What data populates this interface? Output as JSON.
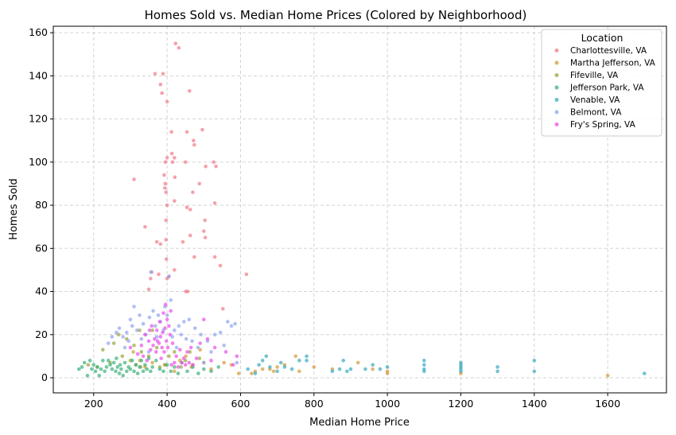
{
  "chart_data": {
    "type": "scatter",
    "title": "Homes Sold vs. Median Home Prices (Colored by Neighborhood)",
    "xlabel": "Median Home Price",
    "ylabel": "Homes Sold",
    "xlim": [
      90,
      1760
    ],
    "ylim": [
      -7,
      163
    ],
    "xticks": [
      200,
      400,
      600,
      800,
      1000,
      1200,
      1400,
      1600
    ],
    "yticks": [
      0,
      20,
      40,
      60,
      80,
      100,
      120,
      140,
      160
    ],
    "grid": true,
    "legend": {
      "title": "Location",
      "placement": "top-right"
    },
    "series": [
      {
        "name": "Charlottesville, VA",
        "color": "#f07a89",
        "points": [
          [
            367,
            141
          ],
          [
            423,
            155
          ],
          [
            432,
            153
          ],
          [
            389,
            141
          ],
          [
            382,
            136
          ],
          [
            386,
            132
          ],
          [
            400,
            128
          ],
          [
            461,
            133
          ],
          [
            310,
            92
          ],
          [
            340,
            70
          ],
          [
            372,
            63
          ],
          [
            382,
            62
          ],
          [
            377,
            48
          ],
          [
            358,
            49
          ],
          [
            355,
            46
          ],
          [
            350,
            41
          ],
          [
            392,
            94
          ],
          [
            395,
            100
          ],
          [
            400,
            102
          ],
          [
            395,
            90
          ],
          [
            394,
            88
          ],
          [
            397,
            86
          ],
          [
            400,
            80
          ],
          [
            397,
            73
          ],
          [
            405,
            47
          ],
          [
            400,
            46
          ],
          [
            420,
            50
          ],
          [
            398,
            55
          ],
          [
            397,
            64
          ],
          [
            420,
            82
          ],
          [
            421,
            93
          ],
          [
            412,
            114
          ],
          [
            413,
            104
          ],
          [
            420,
            102
          ],
          [
            415,
            100
          ],
          [
            450,
            100
          ],
          [
            454,
            114
          ],
          [
            472,
            110
          ],
          [
            474,
            108
          ],
          [
            470,
            86
          ],
          [
            463,
            78
          ],
          [
            454,
            79
          ],
          [
            463,
            66
          ],
          [
            474,
            56
          ],
          [
            443,
            63
          ],
          [
            451,
            40
          ],
          [
            456,
            40
          ],
          [
            496,
            115
          ],
          [
            488,
            90
          ],
          [
            500,
            68
          ],
          [
            503,
            73
          ],
          [
            504,
            65
          ],
          [
            505,
            98
          ],
          [
            527,
            100
          ],
          [
            533,
            98
          ],
          [
            530,
            81
          ],
          [
            530,
            56
          ],
          [
            545,
            52
          ],
          [
            552,
            32
          ],
          [
            616,
            48
          ]
        ]
      },
      {
        "name": "Martha Jefferson, VA",
        "color": "#d39a39",
        "points": [
          [
            308,
            12
          ],
          [
            326,
            8
          ],
          [
            340,
            5
          ],
          [
            360,
            7
          ],
          [
            393,
            6
          ],
          [
            420,
            3
          ],
          [
            435,
            8
          ],
          [
            451,
            10
          ],
          [
            466,
            5
          ],
          [
            490,
            13
          ],
          [
            500,
            7
          ],
          [
            520,
            4
          ],
          [
            555,
            7
          ],
          [
            575,
            6
          ],
          [
            595,
            2
          ],
          [
            630,
            2
          ],
          [
            640,
            3
          ],
          [
            660,
            4
          ],
          [
            680,
            4
          ],
          [
            690,
            3
          ],
          [
            700,
            5
          ],
          [
            720,
            6
          ],
          [
            750,
            10
          ],
          [
            760,
            3
          ],
          [
            800,
            5
          ],
          [
            850,
            4
          ],
          [
            920,
            7
          ],
          [
            960,
            4
          ],
          [
            1000,
            3
          ],
          [
            1000,
            2
          ],
          [
            1200,
            2
          ],
          [
            1600,
            1
          ]
        ]
      },
      {
        "name": "Fifeville, VA",
        "color": "#97a538",
        "points": [
          [
            185,
            6
          ],
          [
            210,
            5
          ],
          [
            225,
            13
          ],
          [
            245,
            7
          ],
          [
            255,
            16
          ],
          [
            268,
            20
          ],
          [
            278,
            10
          ],
          [
            290,
            18
          ],
          [
            300,
            8
          ],
          [
            310,
            15
          ],
          [
            315,
            6
          ],
          [
            325,
            22
          ],
          [
            328,
            5
          ],
          [
            330,
            12
          ],
          [
            350,
            10
          ],
          [
            360,
            22
          ],
          [
            372,
            14
          ],
          [
            380,
            5
          ],
          [
            395,
            6
          ],
          [
            405,
            10
          ],
          [
            420,
            12
          ],
          [
            438,
            5
          ],
          [
            450,
            8
          ],
          [
            462,
            12
          ],
          [
            470,
            6
          ],
          [
            488,
            9
          ]
        ]
      },
      {
        "name": "Jefferson Park, VA",
        "color": "#3bb17a",
        "points": [
          [
            160,
            4
          ],
          [
            168,
            5
          ],
          [
            175,
            7
          ],
          [
            183,
            1
          ],
          [
            190,
            8
          ],
          [
            195,
            4
          ],
          [
            200,
            6
          ],
          [
            205,
            3
          ],
          [
            210,
            5
          ],
          [
            215,
            1
          ],
          [
            220,
            4
          ],
          [
            225,
            8
          ],
          [
            230,
            3
          ],
          [
            235,
            5
          ],
          [
            240,
            8
          ],
          [
            245,
            6
          ],
          [
            250,
            4
          ],
          [
            255,
            7
          ],
          [
            260,
            3
          ],
          [
            262,
            9
          ],
          [
            265,
            5
          ],
          [
            270,
            2
          ],
          [
            272,
            6
          ],
          [
            275,
            4
          ],
          [
            280,
            1
          ],
          [
            285,
            7
          ],
          [
            290,
            3
          ],
          [
            295,
            5
          ],
          [
            300,
            4
          ],
          [
            305,
            8
          ],
          [
            310,
            3
          ],
          [
            315,
            6
          ],
          [
            320,
            2
          ],
          [
            325,
            5
          ],
          [
            330,
            8
          ],
          [
            335,
            3
          ],
          [
            340,
            6
          ],
          [
            345,
            4
          ],
          [
            350,
            9
          ],
          [
            355,
            3
          ],
          [
            360,
            5
          ],
          [
            370,
            8
          ],
          [
            380,
            4
          ],
          [
            390,
            3
          ],
          [
            400,
            6
          ],
          [
            410,
            3
          ],
          [
            420,
            5
          ],
          [
            430,
            2
          ],
          [
            440,
            7
          ],
          [
            455,
            3
          ],
          [
            470,
            5
          ],
          [
            485,
            2
          ],
          [
            500,
            4
          ],
          [
            520,
            3
          ],
          [
            540,
            5
          ]
        ]
      },
      {
        "name": "Venable, VA",
        "color": "#38a9c0",
        "points": [
          [
            620,
            4
          ],
          [
            640,
            2
          ],
          [
            650,
            6
          ],
          [
            660,
            8
          ],
          [
            670,
            10
          ],
          [
            680,
            5
          ],
          [
            700,
            3
          ],
          [
            710,
            7
          ],
          [
            720,
            5
          ],
          [
            740,
            4
          ],
          [
            760,
            8
          ],
          [
            780,
            10
          ],
          [
            780,
            8
          ],
          [
            850,
            3
          ],
          [
            870,
            4
          ],
          [
            880,
            8
          ],
          [
            890,
            3
          ],
          [
            900,
            4
          ],
          [
            940,
            4
          ],
          [
            960,
            6
          ],
          [
            980,
            4
          ],
          [
            1000,
            5
          ],
          [
            1100,
            8
          ],
          [
            1100,
            6
          ],
          [
            1100,
            4
          ],
          [
            1100,
            3
          ],
          [
            1200,
            7
          ],
          [
            1200,
            6
          ],
          [
            1200,
            5
          ],
          [
            1200,
            4
          ],
          [
            1200,
            3
          ],
          [
            1300,
            5
          ],
          [
            1300,
            3
          ],
          [
            1400,
            8
          ],
          [
            1400,
            3
          ],
          [
            1700,
            2
          ]
        ]
      },
      {
        "name": "Belmont, VA",
        "color": "#8fa4f0",
        "points": [
          [
            240,
            16
          ],
          [
            250,
            19
          ],
          [
            262,
            21
          ],
          [
            270,
            23
          ],
          [
            280,
            19
          ],
          [
            285,
            14
          ],
          [
            290,
            21
          ],
          [
            295,
            17
          ],
          [
            300,
            27
          ],
          [
            305,
            24
          ],
          [
            310,
            33
          ],
          [
            318,
            22
          ],
          [
            325,
            29
          ],
          [
            330,
            18
          ],
          [
            335,
            25
          ],
          [
            342,
            20
          ],
          [
            350,
            12
          ],
          [
            352,
            28
          ],
          [
            356,
            49
          ],
          [
            362,
            31
          ],
          [
            368,
            24
          ],
          [
            372,
            19
          ],
          [
            376,
            29
          ],
          [
            382,
            26
          ],
          [
            390,
            22
          ],
          [
            394,
            33
          ],
          [
            400,
            29
          ],
          [
            405,
            47
          ],
          [
            410,
            36
          ],
          [
            414,
            19
          ],
          [
            420,
            22
          ],
          [
            426,
            14
          ],
          [
            432,
            24
          ],
          [
            438,
            20
          ],
          [
            446,
            26
          ],
          [
            452,
            18
          ],
          [
            460,
            27
          ],
          [
            468,
            17
          ],
          [
            476,
            23
          ],
          [
            484,
            14
          ],
          [
            492,
            20
          ],
          [
            500,
            7
          ],
          [
            510,
            17
          ],
          [
            520,
            12
          ],
          [
            530,
            20
          ],
          [
            545,
            21
          ],
          [
            555,
            15
          ],
          [
            565,
            26
          ],
          [
            575,
            24
          ],
          [
            585,
            25
          ],
          [
            590,
            7
          ]
        ]
      },
      {
        "name": "Fry's Spring, VA",
        "color": "#ea4fe8",
        "points": [
          [
            300,
            14
          ],
          [
            320,
            11
          ],
          [
            330,
            15
          ],
          [
            335,
            10
          ],
          [
            340,
            20
          ],
          [
            345,
            8
          ],
          [
            350,
            17
          ],
          [
            352,
            22
          ],
          [
            355,
            13
          ],
          [
            358,
            24
          ],
          [
            362,
            15
          ],
          [
            366,
            18
          ],
          [
            370,
            12
          ],
          [
            372,
            22
          ],
          [
            374,
            17
          ],
          [
            378,
            16
          ],
          [
            380,
            26
          ],
          [
            382,
            19
          ],
          [
            384,
            9
          ],
          [
            386,
            14
          ],
          [
            388,
            21
          ],
          [
            390,
            30
          ],
          [
            392,
            12
          ],
          [
            394,
            23
          ],
          [
            396,
            34
          ],
          [
            398,
            17
          ],
          [
            400,
            27
          ],
          [
            402,
            14
          ],
          [
            405,
            24
          ],
          [
            408,
            20
          ],
          [
            410,
            31
          ],
          [
            412,
            6
          ],
          [
            415,
            16
          ],
          [
            420,
            7
          ],
          [
            425,
            10
          ],
          [
            430,
            5
          ],
          [
            435,
            13
          ],
          [
            440,
            7
          ],
          [
            445,
            9
          ],
          [
            450,
            6
          ],
          [
            455,
            12
          ],
          [
            460,
            7
          ],
          [
            465,
            14
          ],
          [
            470,
            6
          ],
          [
            480,
            9
          ],
          [
            490,
            16
          ],
          [
            500,
            27
          ],
          [
            510,
            18
          ],
          [
            520,
            8
          ],
          [
            530,
            14
          ],
          [
            560,
            12
          ],
          [
            580,
            6
          ],
          [
            590,
            10
          ]
        ]
      }
    ]
  }
}
